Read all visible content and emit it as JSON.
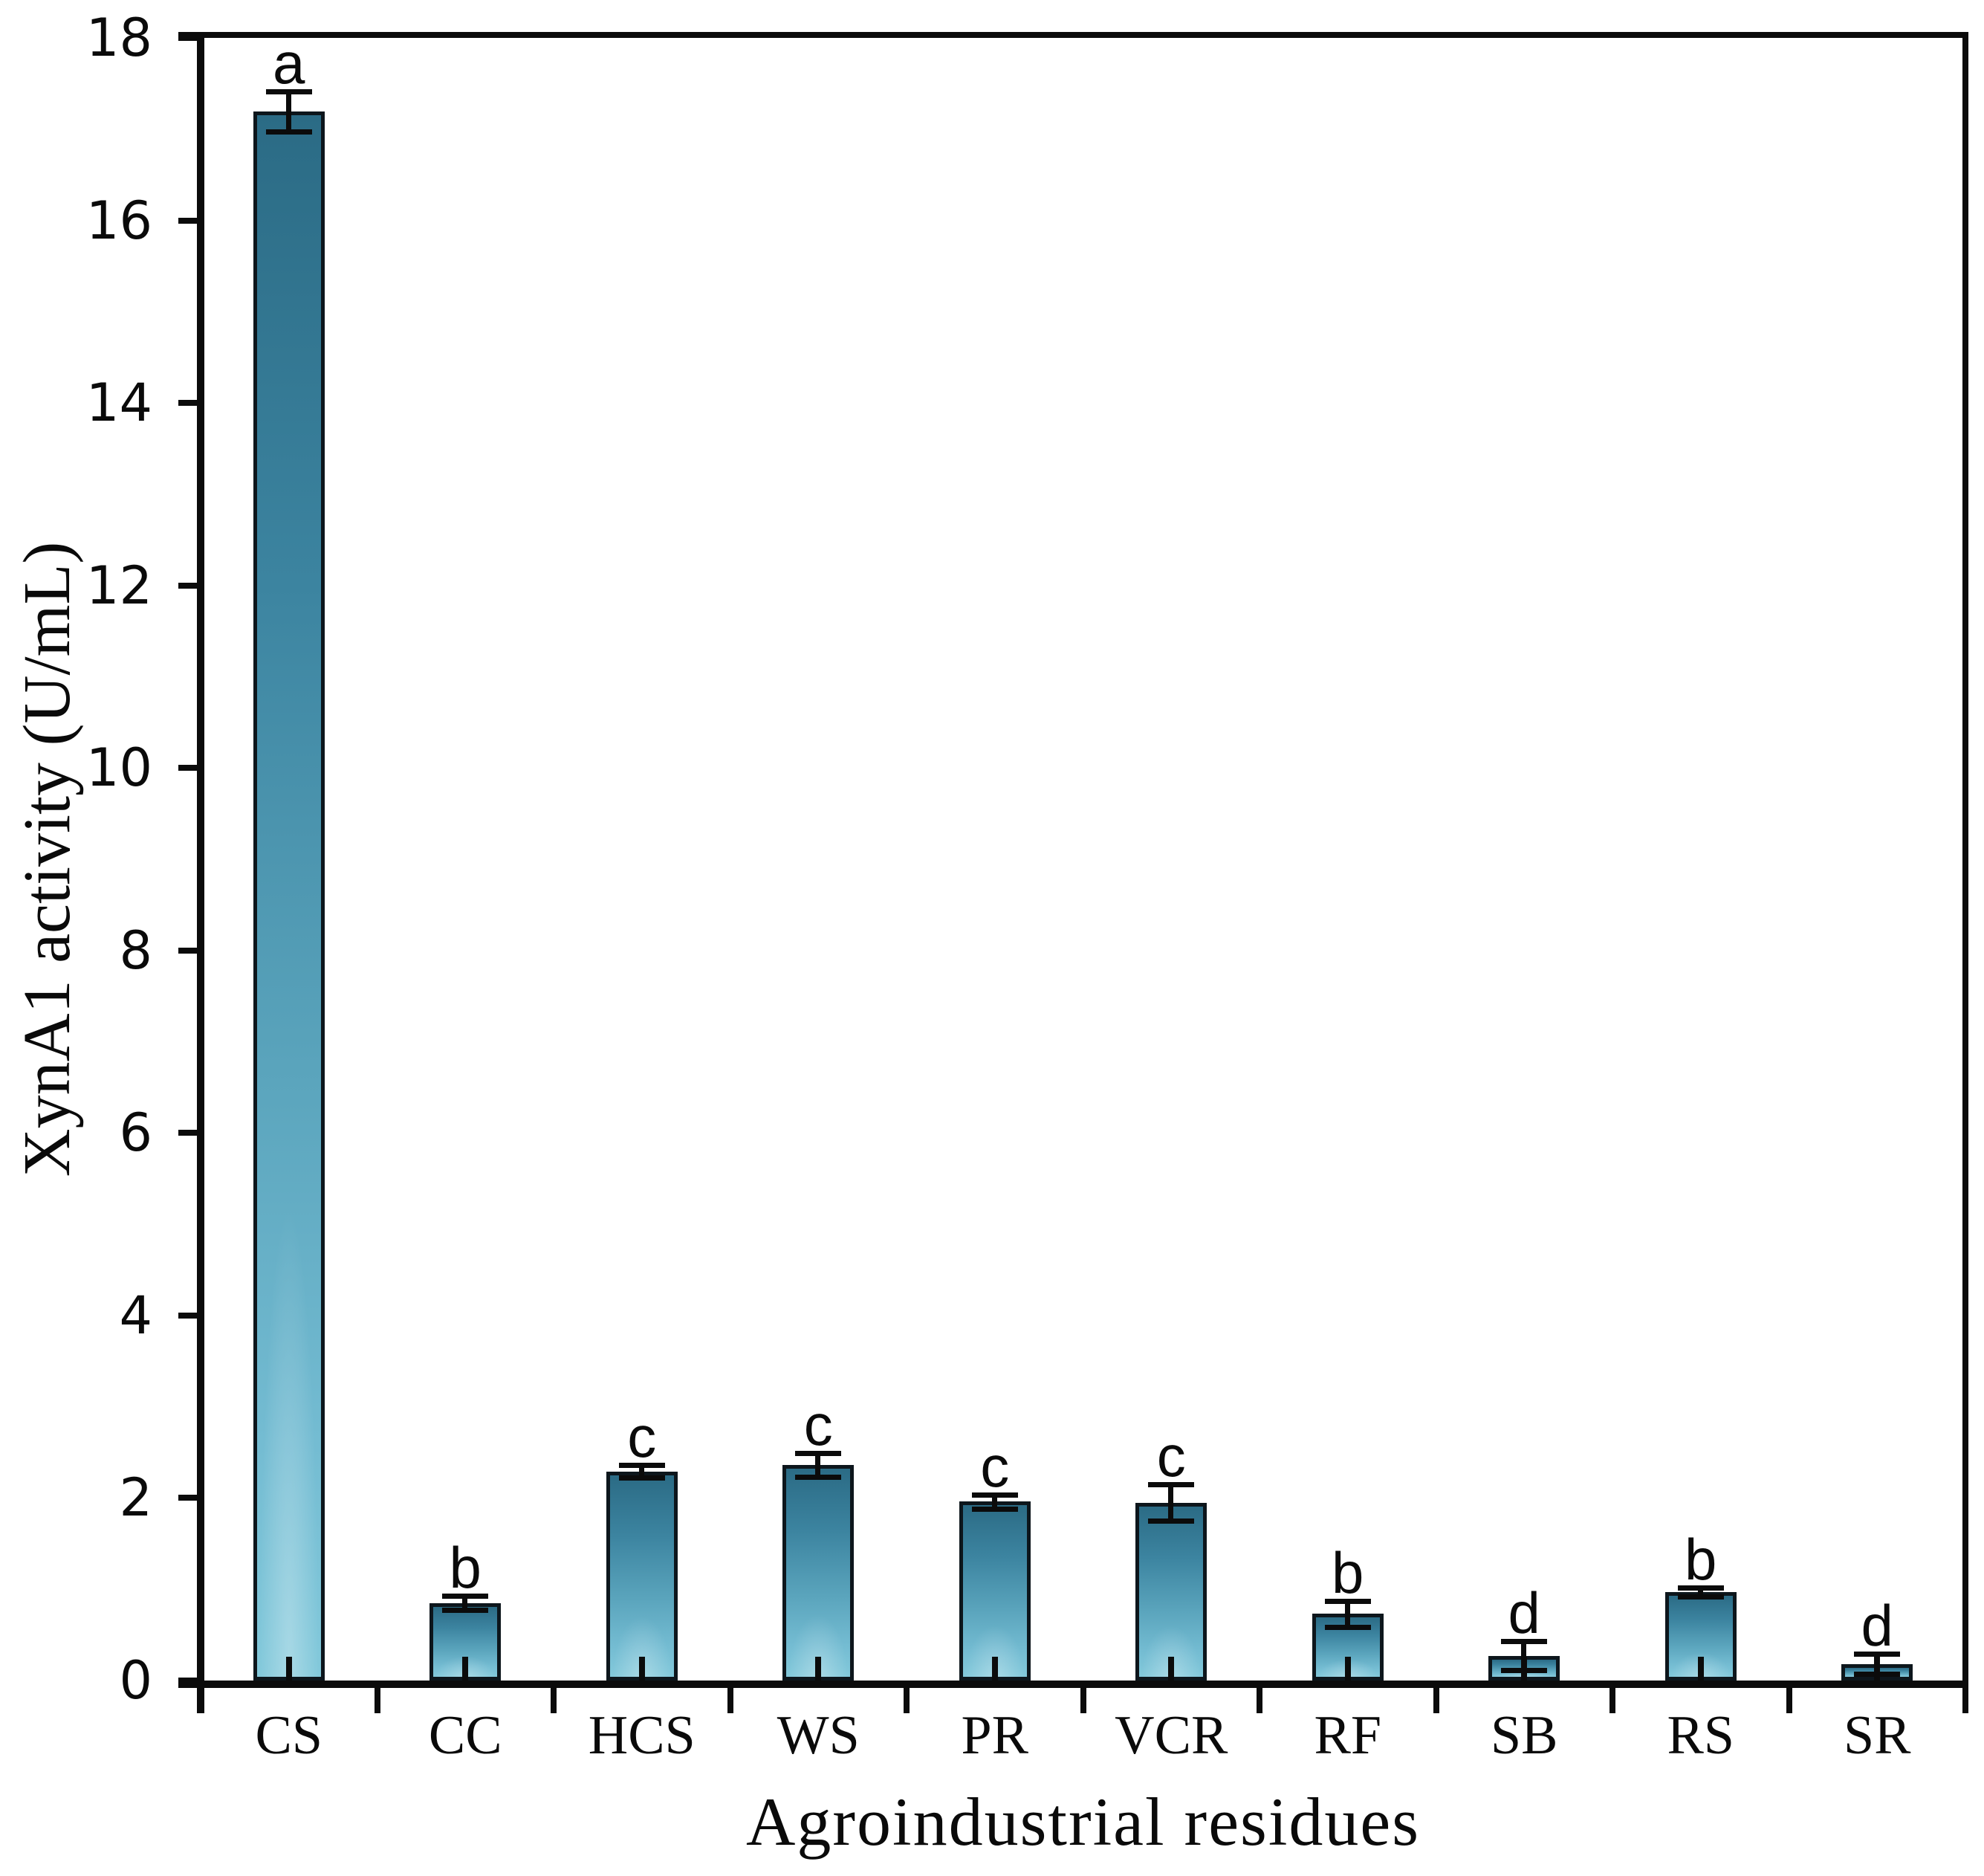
{
  "figure": {
    "background": "#ffffff",
    "x_axis_title": "Agroindustrial residues",
    "y_axis_title": "XynA1 activity (U/mL)"
  },
  "chart_data": {
    "type": "bar",
    "title": "",
    "xlabel": "Agroindustrial residues",
    "ylabel": "XynA1 activity (U/mL)",
    "ylim": [
      0,
      18
    ],
    "ytick_step": 2,
    "ytick_labels": [
      "0",
      "2",
      "4",
      "6",
      "8",
      "10",
      "12",
      "14",
      "16",
      "18"
    ],
    "grid": false,
    "legend_position": "none",
    "plot_border_box": true,
    "categories": [
      "CS",
      "CC",
      "HCS",
      "WS",
      "PR",
      "VCR",
      "RF",
      "SB",
      "RS",
      "SR"
    ],
    "series": [
      {
        "name": "XynA1 activity",
        "values": [
          17.19,
          0.85,
          2.29,
          2.36,
          1.96,
          1.95,
          0.73,
          0.27,
          0.97,
          0.18
        ],
        "errors": [
          0.22,
          0.08,
          0.07,
          0.13,
          0.08,
          0.2,
          0.14,
          0.16,
          0.05,
          0.11
        ]
      }
    ],
    "significance_letters": [
      "a",
      "b",
      "c",
      "c",
      "c",
      "c",
      "b",
      "d",
      "b",
      "d"
    ],
    "colors": {
      "bar_gradient_top": "#2b6b85",
      "bar_gradient_mid": "#5ba5bd",
      "bar_gradient_bottom": "#83c9db",
      "bar_outline": "#0d161c",
      "error_bar": "#0b0b0b",
      "axis": "#0b0b0b",
      "text": "#0a0a0a"
    }
  }
}
